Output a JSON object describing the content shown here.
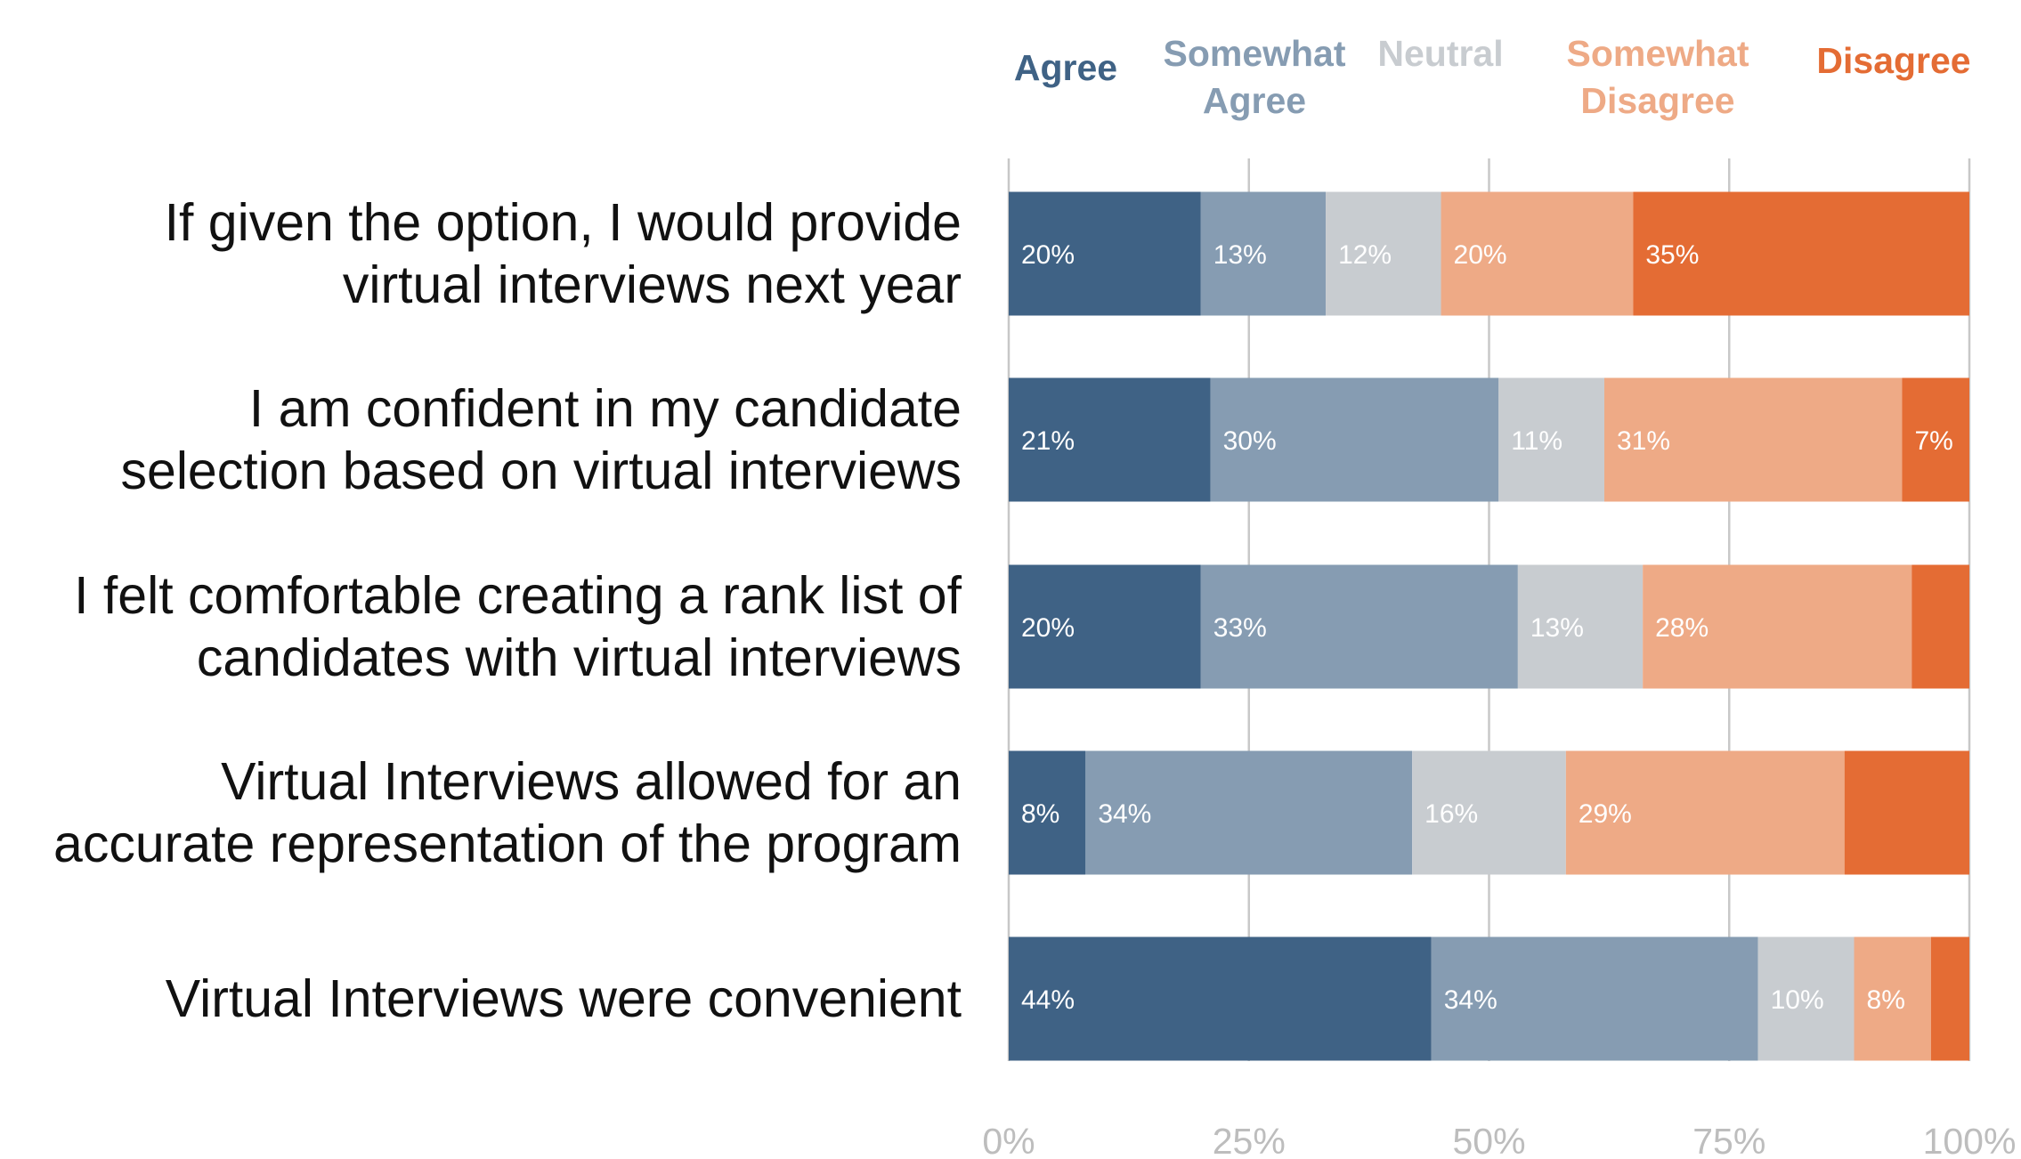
{
  "chart_data": {
    "type": "bar",
    "orientation": "horizontal",
    "stacked": true,
    "categories": [
      [
        "If given the option, I would provide",
        "virtual interviews next year"
      ],
      [
        "I am confident in my candidate",
        "selection based on virtual interviews"
      ],
      [
        "I felt comfortable creating a rank list of",
        "candidates with virtual interviews"
      ],
      [
        "Virtual Interviews allowed for an",
        "accurate representation of the program"
      ],
      [
        "Virtual Interviews were convenient"
      ]
    ],
    "series": [
      {
        "name": "Agree",
        "legend_lines": [
          "Agree"
        ],
        "color": "#3f6285",
        "label_color": "#ffffff",
        "values": [
          20,
          21,
          20,
          8,
          44
        ],
        "labels": [
          "20%",
          "21%",
          "20%",
          "8%",
          "44%"
        ]
      },
      {
        "name": "Somewhat Agree",
        "legend_lines": [
          "Somewhat",
          "Agree"
        ],
        "color": "#869cb2",
        "label_color": "#ffffff",
        "values": [
          13,
          30,
          33,
          34,
          34
        ],
        "labels": [
          "13%",
          "30%",
          "33%",
          "34%",
          "34%"
        ]
      },
      {
        "name": "Neutral",
        "legend_lines": [
          "Neutral"
        ],
        "color": "#c8ccd0",
        "label_color": "#ffffff",
        "values": [
          12,
          11,
          13,
          16,
          10
        ],
        "labels": [
          "12%",
          "11%",
          "13%",
          "16%",
          "10%"
        ]
      },
      {
        "name": "Somewhat Disagree",
        "legend_lines": [
          "Somewhat",
          "Disagree"
        ],
        "color": "#eeaa86",
        "label_color": "#ffffff",
        "values": [
          20,
          31,
          28,
          29,
          8
        ],
        "labels": [
          "20%",
          "31%",
          "28%",
          "29%",
          "8%"
        ]
      },
      {
        "name": "Disagree",
        "legend_lines": [
          "Disagree"
        ],
        "color": "#e46c34",
        "label_color": "#ffffff",
        "values": [
          35,
          7,
          6,
          13,
          4
        ],
        "labels": [
          "35%",
          "7%",
          "",
          "",
          ""
        ]
      }
    ],
    "xlim": [
      0,
      100
    ],
    "xticks": [
      0,
      25,
      50,
      75,
      100
    ],
    "xtick_labels": [
      "0%",
      "25%",
      "50%",
      "75%",
      "100%"
    ],
    "grid": true,
    "legend_position": "top",
    "title": "",
    "xlabel": "",
    "ylabel": ""
  }
}
